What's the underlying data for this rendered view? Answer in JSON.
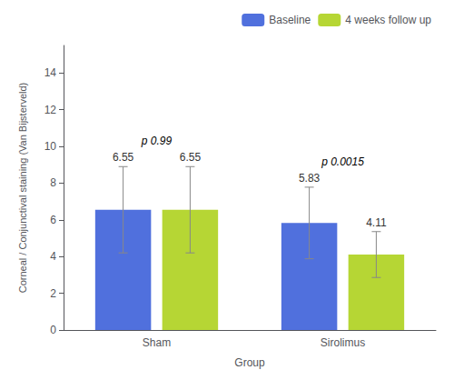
{
  "chart_data": {
    "type": "bar",
    "categories": [
      "Sham",
      "Sirolimus"
    ],
    "series": [
      {
        "name": "Baseline",
        "values": [
          6.55,
          5.83
        ],
        "errors_up": [
          2.35,
          1.95
        ],
        "errors_down": [
          2.35,
          1.95
        ]
      },
      {
        "name": "4 weeks follow up",
        "values": [
          6.55,
          4.11
        ],
        "errors_up": [
          2.35,
          1.25
        ],
        "errors_down": [
          2.35,
          1.25
        ]
      }
    ],
    "xlabel": "Group",
    "ylabel": "Corneal / Conjunctival staining (Van Bijsterveld)",
    "ylim": [
      0,
      15.5
    ],
    "yticks": [
      0,
      2,
      4,
      6,
      8,
      10,
      12,
      14
    ],
    "annotations": [
      {
        "text": "p 0.99",
        "category": "Sham"
      },
      {
        "text": "p 0.0015",
        "category": "Sirolimus"
      }
    ],
    "data_labels": true,
    "grid": false,
    "legend": "upper right"
  }
}
